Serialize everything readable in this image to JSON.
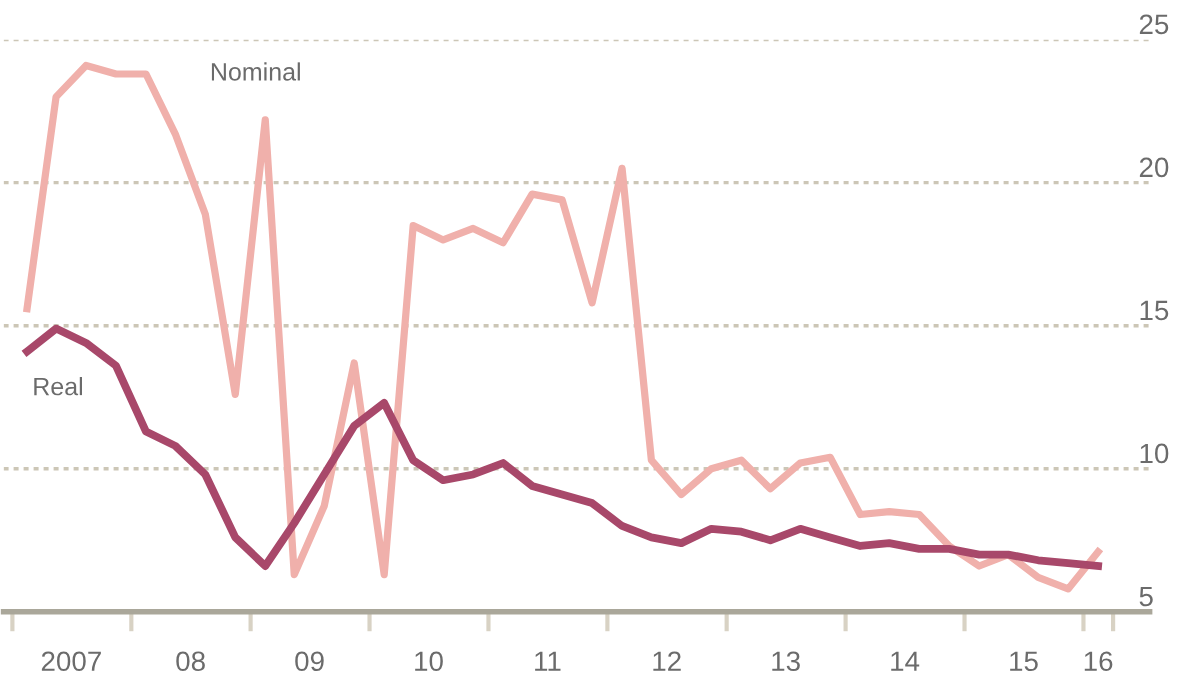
{
  "chart_data": {
    "type": "line",
    "x": [
      "2007-02-15",
      "2007-05-15",
      "2007-08-15",
      "2007-11-15",
      "2008-02-15",
      "2008-05-15",
      "2008-08-15",
      "2008-11-15",
      "2009-02-15",
      "2009-05-15",
      "2009-08-15",
      "2009-11-15",
      "2010-02-15",
      "2010-05-15",
      "2010-08-15",
      "2010-11-15",
      "2011-02-15",
      "2011-05-15",
      "2011-08-15",
      "2011-11-15",
      "2012-02-15",
      "2012-05-15",
      "2012-08-15",
      "2012-11-15",
      "2013-02-15",
      "2013-05-15",
      "2013-08-15",
      "2013-11-15",
      "2014-02-15",
      "2014-05-15",
      "2014-08-15",
      "2014-11-15",
      "2015-02-15",
      "2015-05-15",
      "2015-08-15",
      "2015-11-15",
      "2016-02-15"
    ],
    "series": [
      {
        "name": "Nominal",
        "color": "#f0b0ab",
        "values": [
          15.6,
          23.0,
          24.1,
          23.8,
          23.8,
          21.7,
          18.9,
          12.6,
          22.2,
          6.3,
          8.7,
          13.7,
          6.3,
          18.5,
          18.0,
          18.4,
          17.9,
          19.6,
          19.4,
          15.8,
          20.5,
          10.3,
          9.1,
          10.0,
          10.3,
          9.3,
          10.2,
          10.4,
          8.4,
          8.5,
          8.4,
          7.3,
          6.6,
          7.0,
          6.2,
          5.8,
          7.1
        ]
      },
      {
        "name": "Real",
        "color": "#a8486a",
        "values": [
          14.1,
          14.9,
          14.4,
          13.6,
          11.3,
          10.8,
          9.8,
          7.6,
          6.6,
          8.1,
          9.8,
          11.5,
          12.3,
          10.3,
          9.6,
          9.8,
          10.2,
          9.4,
          9.1,
          8.8,
          8.0,
          7.6,
          7.4,
          7.9,
          7.8,
          7.5,
          7.9,
          7.6,
          7.3,
          7.4,
          7.2,
          7.2,
          7.0,
          7.0,
          6.8,
          6.7,
          6.6
        ]
      }
    ],
    "xlim": [
      "2006-12-05",
      "2016-07-22"
    ],
    "xticks": [
      {
        "value": "2007-01-01",
        "label": null
      },
      {
        "value": "2007-07-01",
        "label": "2007"
      },
      {
        "value": "2008-01-01",
        "label": null
      },
      {
        "value": "2008-07-01",
        "label": "08"
      },
      {
        "value": "2009-01-01",
        "label": null
      },
      {
        "value": "2009-07-01",
        "label": "09"
      },
      {
        "value": "2010-01-01",
        "label": null
      },
      {
        "value": "2010-07-01",
        "label": "10"
      },
      {
        "value": "2011-01-01",
        "label": null
      },
      {
        "value": "2011-07-01",
        "label": "11"
      },
      {
        "value": "2012-01-01",
        "label": null
      },
      {
        "value": "2012-07-01",
        "label": "12"
      },
      {
        "value": "2013-01-01",
        "label": null
      },
      {
        "value": "2013-07-01",
        "label": "13"
      },
      {
        "value": "2014-01-01",
        "label": null
      },
      {
        "value": "2014-07-01",
        "label": "14"
      },
      {
        "value": "2015-01-01",
        "label": null
      },
      {
        "value": "2015-07-01",
        "label": "15"
      },
      {
        "value": "2016-01-01",
        "label": null
      },
      {
        "value": "2016-02-15",
        "label": "16"
      },
      {
        "value": "2016-04-01",
        "label": null
      }
    ],
    "ylim": [
      5,
      25
    ],
    "yticks": [
      5,
      10,
      15,
      20,
      25
    ],
    "grid": "y",
    "legend": false,
    "line_style": "solid",
    "marker": "none"
  }
}
